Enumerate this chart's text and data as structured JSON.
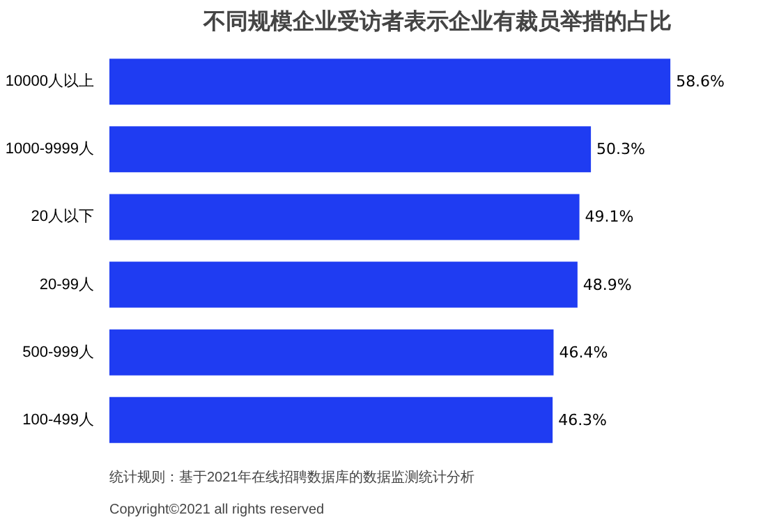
{
  "chart_data": {
    "type": "bar",
    "orientation": "horizontal",
    "title": "不同规模企业受访者表示企业有裁员举措的占比",
    "categories": [
      "10000人以上",
      "1000-9999人",
      "20人以下",
      "20-99人",
      "500-999人",
      "100-499人"
    ],
    "values": [
      58.6,
      50.3,
      49.1,
      48.9,
      46.4,
      46.3
    ],
    "value_labels": [
      "58.6%",
      "50.3%",
      "49.1%",
      "48.9%",
      "46.4%",
      "46.3%"
    ],
    "color": "#1f3cf2",
    "annotations": [
      "统计规则：基于2021年在线招聘数据库的数据监测统计分析",
      "Copyright©2021 all rights reserved"
    ]
  }
}
